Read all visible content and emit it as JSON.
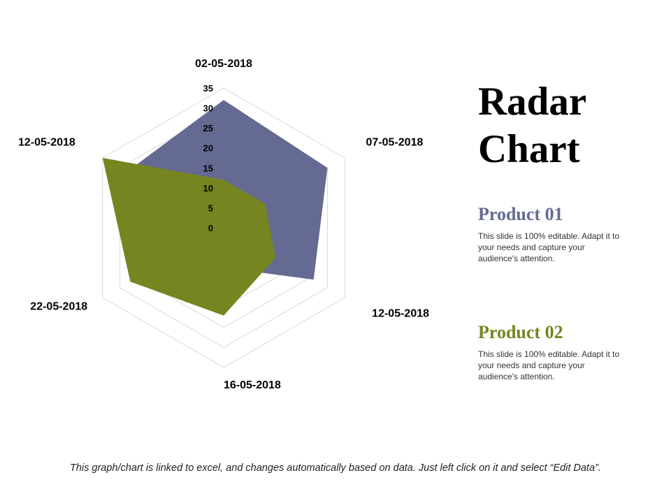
{
  "chart_data": {
    "type": "radar",
    "categories": [
      "02-05-2018",
      "07-05-2018",
      "12-05-2018",
      "16-05-2018",
      "22-05-2018",
      "12-05-2018"
    ],
    "rlim": [
      0,
      35
    ],
    "ticks": [
      "0",
      "5",
      "10",
      "15",
      "20",
      "25",
      "30",
      "35"
    ],
    "grid": true,
    "series": [
      {
        "name": "Product 01",
        "color": "#646a92",
        "values": [
          32,
          30,
          26,
          10,
          8,
          28
        ]
      },
      {
        "name": "Product 02",
        "color": "#778521",
        "values": [
          12,
          12,
          15,
          22,
          27,
          35
        ]
      }
    ]
  },
  "page": {
    "title_line1": "Radar",
    "title_line2": "Chart",
    "products": [
      {
        "heading": "Product 01",
        "color": "#646a92",
        "text": "This slide is 100% editable. Adapt it to your needs and capture your audience's attention."
      },
      {
        "heading": "Product 02",
        "color": "#778521",
        "text": "This slide is 100% editable. Adapt it to your needs and capture your audience's attention."
      }
    ],
    "footer": "This graph/chart is linked to excel, and changes automatically based on data. Just left click on it and select “Edit Data”."
  }
}
